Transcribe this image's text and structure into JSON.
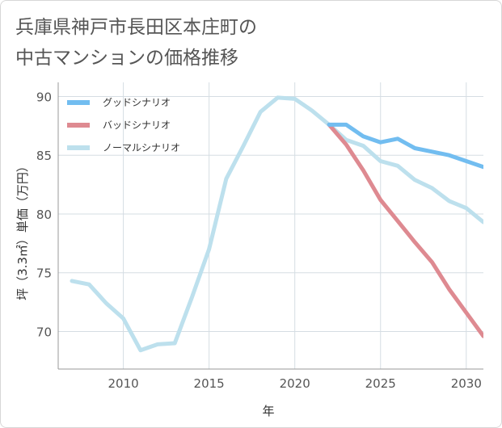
{
  "chart_data": {
    "type": "line",
    "title": "兵庫県神戸市長田区本庄町の\n中古マンションの価格推移",
    "xlabel": "年",
    "ylabel": "坪（3.3㎡）単価（万円）",
    "xlim": [
      2006.2,
      2031
    ],
    "ylim": [
      66.8,
      91.2
    ],
    "xticks": [
      2010,
      2015,
      2020,
      2025,
      2030
    ],
    "yticks": [
      70,
      75,
      80,
      85,
      90
    ],
    "grid": true,
    "legend_position": "top-left",
    "series": [
      {
        "name": "グッドシナリオ",
        "color": "#72bdf0",
        "x": [
          2022,
          2023,
          2024,
          2025,
          2026,
          2027,
          2028,
          2029,
          2030,
          2031
        ],
        "y": [
          87.6,
          87.6,
          86.6,
          86.1,
          86.4,
          85.6,
          85.3,
          85.0,
          84.5,
          84.0
        ]
      },
      {
        "name": "バッドシナリオ",
        "color": "#de8a91",
        "x": [
          2022,
          2023,
          2024,
          2025,
          2026,
          2027,
          2028,
          2029,
          2030,
          2031
        ],
        "y": [
          87.6,
          85.9,
          83.7,
          81.2,
          79.4,
          77.6,
          75.9,
          73.6,
          71.6,
          69.6
        ]
      },
      {
        "name": "ノーマルシナリオ",
        "color": "#bde0ed",
        "x": [
          2007,
          2008,
          2009,
          2010,
          2011,
          2012,
          2013,
          2014,
          2015,
          2016,
          2017,
          2018,
          2019,
          2020,
          2021,
          2022,
          2023,
          2024,
          2025,
          2026,
          2027,
          2028,
          2029,
          2030,
          2031
        ],
        "y": [
          74.3,
          74.0,
          72.4,
          71.1,
          68.4,
          68.9,
          69.0,
          72.9,
          77.0,
          83.0,
          85.8,
          88.7,
          89.9,
          89.8,
          88.8,
          87.6,
          86.3,
          85.8,
          84.5,
          84.1,
          82.9,
          82.2,
          81.1,
          80.5,
          79.3
        ]
      }
    ]
  }
}
